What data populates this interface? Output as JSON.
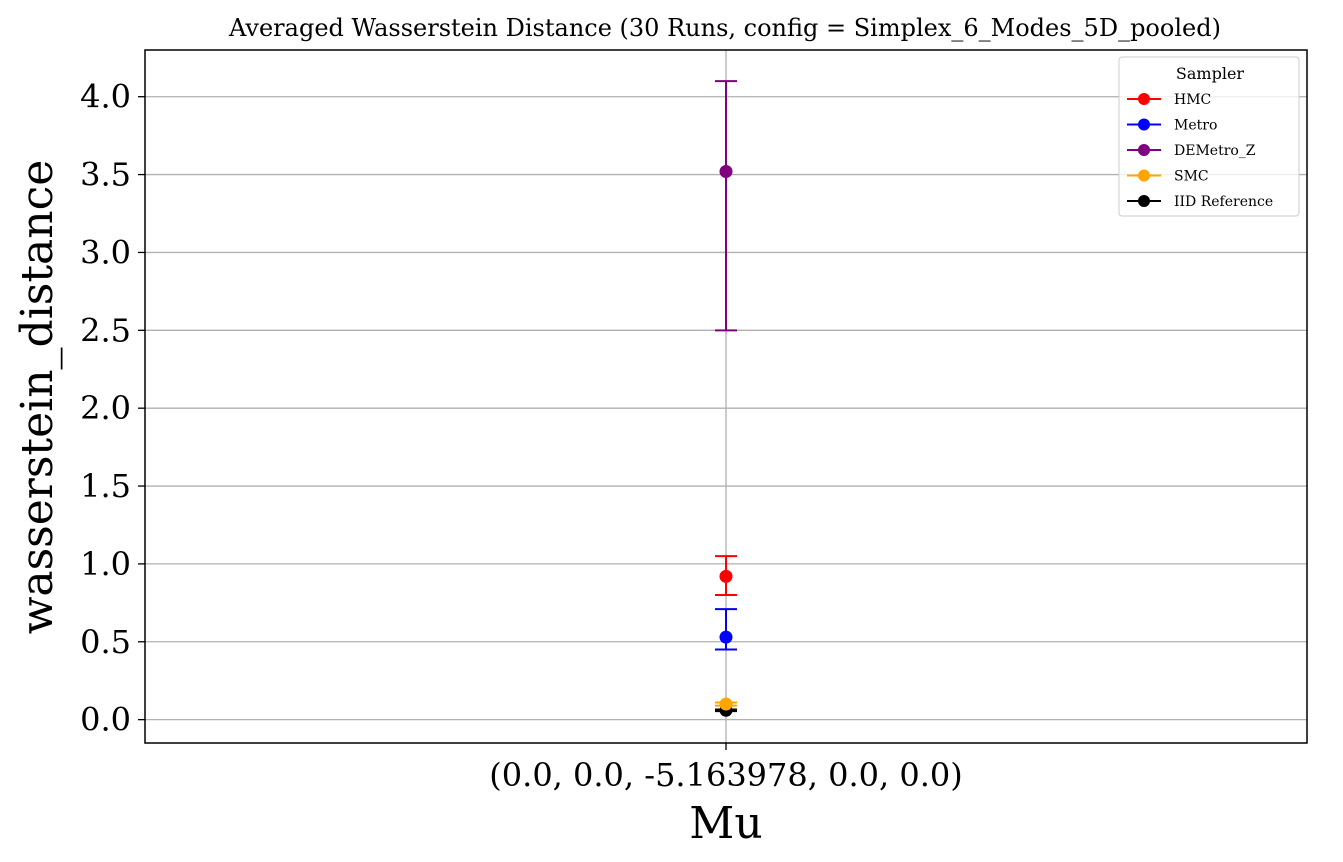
{
  "chart_data": {
    "type": "scatter",
    "title": "Averaged Wasserstein Distance (30 Runs, config = Simplex_6_Modes_5D_pooled)",
    "xlabel": "Mu",
    "ylabel": "wasserstein_distance",
    "categories": [
      "(0.0, 0.0, -5.163978, 0.0, 0.0)"
    ],
    "ylim": [
      -0.15,
      4.3
    ],
    "yticks": [
      0.0,
      0.5,
      1.0,
      1.5,
      2.0,
      2.5,
      3.0,
      3.5,
      4.0
    ],
    "ytick_labels": [
      "0.0",
      "0.5",
      "1.0",
      "1.5",
      "2.0",
      "2.5",
      "3.0",
      "3.5",
      "4.0"
    ],
    "grid": true,
    "legend": {
      "title": "Sampler",
      "position": "top-right"
    },
    "series": [
      {
        "name": "HMC",
        "color": "#ff0000",
        "values": [
          0.92
        ],
        "err_low": [
          0.8
        ],
        "err_high": [
          1.05
        ]
      },
      {
        "name": "Metro",
        "color": "#0000ff",
        "values": [
          0.53
        ],
        "err_low": [
          0.45
        ],
        "err_high": [
          0.71
        ]
      },
      {
        "name": "DEMetro_Z",
        "color": "#800080",
        "values": [
          3.52
        ],
        "err_low": [
          2.5
        ],
        "err_high": [
          4.1
        ]
      },
      {
        "name": "SMC",
        "color": "#ffa500",
        "values": [
          0.1
        ],
        "err_low": [
          0.09
        ],
        "err_high": [
          0.11
        ]
      },
      {
        "name": "IID Reference",
        "color": "#000000",
        "values": [
          0.06
        ],
        "err_low": [
          0.055
        ],
        "err_high": [
          0.065
        ]
      }
    ]
  }
}
